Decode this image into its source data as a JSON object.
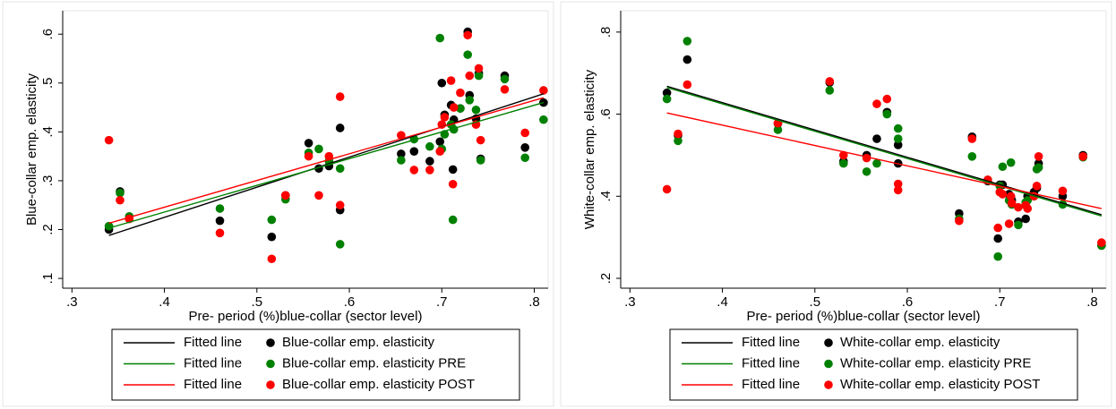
{
  "chart_data": [
    {
      "type": "scatter",
      "xlabel": "Pre- period (%)blue-collar (sector level)",
      "ylabel": "Blue-collar emp. elasticity",
      "xlim": [
        0.29,
        0.815
      ],
      "ylim": [
        0.08,
        0.648
      ],
      "xticks": [
        {
          "value": 0.3,
          "label": ".3"
        },
        {
          "value": 0.4,
          "label": ".4"
        },
        {
          "value": 0.5,
          "label": ".5"
        },
        {
          "value": 0.6,
          "label": ".6"
        },
        {
          "value": 0.7,
          "label": ".7"
        },
        {
          "value": 0.8,
          "label": ".8"
        }
      ],
      "yticks": [
        {
          "value": 0.1,
          "label": ".1"
        },
        {
          "value": 0.2,
          "label": ".2"
        },
        {
          "value": 0.3,
          "label": ".3"
        },
        {
          "value": 0.4,
          "label": ".4"
        },
        {
          "value": 0.5,
          "label": ".5"
        },
        {
          "value": 0.6,
          "label": ".6"
        }
      ],
      "x": [
        0.34,
        0.352,
        0.362,
        0.46,
        0.516,
        0.531,
        0.556,
        0.567,
        0.578,
        0.59,
        0.59,
        0.656,
        0.67,
        0.687,
        0.698,
        0.7,
        0.703,
        0.71,
        0.712,
        0.713,
        0.72,
        0.728,
        0.73,
        0.737,
        0.74,
        0.742,
        0.768,
        0.79,
        0.81
      ],
      "series": [
        {
          "name": "Blue-collar emp. elasticity",
          "color": "#000000",
          "values": [
            0.2,
            0.278,
            0.222,
            0.218,
            0.185,
            0.27,
            0.377,
            0.325,
            0.33,
            0.408,
            0.24,
            0.355,
            0.36,
            0.34,
            0.38,
            0.5,
            0.435,
            0.455,
            0.323,
            0.425,
            0.448,
            0.605,
            0.475,
            0.427,
            0.52,
            0.345,
            0.515,
            0.368,
            0.46
          ]
        },
        {
          "name": "Blue-collar emp. elasticity PRE",
          "color": "#008000",
          "values": [
            0.207,
            0.275,
            0.227,
            0.243,
            0.22,
            0.262,
            0.357,
            0.365,
            0.34,
            0.325,
            0.17,
            0.342,
            0.385,
            0.37,
            0.592,
            0.365,
            0.395,
            0.415,
            0.22,
            0.405,
            0.448,
            0.558,
            0.465,
            0.445,
            0.515,
            0.342,
            0.508,
            0.347,
            0.425
          ]
        },
        {
          "name": "Blue-collar emp. elasticity POST",
          "color": "#ff0000",
          "values": [
            0.383,
            0.26,
            0.222,
            0.193,
            0.14,
            0.27,
            0.35,
            0.27,
            0.35,
            0.472,
            0.25,
            0.393,
            0.322,
            0.322,
            0.36,
            0.415,
            0.43,
            0.505,
            0.293,
            0.45,
            0.48,
            0.598,
            0.515,
            0.415,
            0.53,
            0.383,
            0.487,
            0.398,
            0.485
          ]
        }
      ],
      "fits": [
        {
          "name": "Fitted line",
          "color": "#000000",
          "x": [
            0.34,
            0.81
          ],
          "values": [
            0.188,
            0.478
          ]
        },
        {
          "name": "Fitted line",
          "color": "#008000",
          "x": [
            0.34,
            0.81
          ],
          "values": [
            0.203,
            0.46
          ]
        },
        {
          "name": "Fitted line",
          "color": "#ff0000",
          "x": [
            0.34,
            0.81
          ],
          "values": [
            0.213,
            0.47
          ]
        }
      ]
    },
    {
      "type": "scatter",
      "xlabel": "Pre- period (%)blue-collar (sector level)",
      "ylabel": "White-collar emp. elasticity",
      "xlim": [
        0.29,
        0.815
      ],
      "ylim": [
        0.176,
        0.852
      ],
      "xticks": [
        {
          "value": 0.3,
          "label": ".3"
        },
        {
          "value": 0.4,
          "label": ".4"
        },
        {
          "value": 0.5,
          "label": ".5"
        },
        {
          "value": 0.6,
          "label": ".6"
        },
        {
          "value": 0.7,
          "label": ".7"
        },
        {
          "value": 0.8,
          "label": ".8"
        }
      ],
      "yticks": [
        {
          "value": 0.2,
          "label": ".2"
        },
        {
          "value": 0.4,
          "label": ".4"
        },
        {
          "value": 0.6,
          "label": ".6"
        },
        {
          "value": 0.8,
          "label": ".8"
        }
      ],
      "x": [
        0.34,
        0.352,
        0.362,
        0.46,
        0.516,
        0.531,
        0.556,
        0.567,
        0.578,
        0.59,
        0.59,
        0.656,
        0.67,
        0.687,
        0.698,
        0.7,
        0.703,
        0.71,
        0.712,
        0.713,
        0.72,
        0.728,
        0.73,
        0.737,
        0.74,
        0.742,
        0.768,
        0.79,
        0.81
      ],
      "series": [
        {
          "name": "White-collar emp. elasticity",
          "color": "#000000",
          "values": [
            0.652,
            0.548,
            0.733,
            0.577,
            0.677,
            0.485,
            0.5,
            0.54,
            0.605,
            0.525,
            0.48,
            0.358,
            0.545,
            0.437,
            0.297,
            0.428,
            0.428,
            0.405,
            0.398,
            0.39,
            0.338,
            0.345,
            0.4,
            0.41,
            0.42,
            0.48,
            0.4,
            0.5,
            0.28
          ]
        },
        {
          "name": "White-collar emp. elasticity PRE",
          "color": "#008000",
          "values": [
            0.637,
            0.535,
            0.778,
            0.562,
            0.658,
            0.48,
            0.46,
            0.48,
            0.6,
            0.565,
            0.54,
            0.345,
            0.497,
            0.44,
            0.253,
            0.425,
            0.472,
            0.39,
            0.482,
            0.38,
            0.33,
            0.385,
            0.39,
            0.4,
            0.466,
            0.47,
            0.38,
            0.495,
            0.28
          ]
        },
        {
          "name": "White-collar emp. elasticity POST",
          "color": "#ff0000",
          "values": [
            0.417,
            0.552,
            0.672,
            0.578,
            0.68,
            0.5,
            0.493,
            0.625,
            0.637,
            0.43,
            0.415,
            0.34,
            0.54,
            0.44,
            0.323,
            0.41,
            0.405,
            0.333,
            0.4,
            0.383,
            0.373,
            0.378,
            0.37,
            0.4,
            0.425,
            0.497,
            0.413,
            0.497,
            0.287
          ]
        }
      ],
      "fits": [
        {
          "name": "Fitted line",
          "color": "#000000",
          "x": [
            0.34,
            0.81
          ],
          "values": [
            0.668,
            0.355
          ]
        },
        {
          "name": "Fitted line",
          "color": "#008000",
          "x": [
            0.34,
            0.81
          ],
          "values": [
            0.665,
            0.352
          ]
        },
        {
          "name": "Fitted line",
          "color": "#ff0000",
          "x": [
            0.34,
            0.81
          ],
          "values": [
            0.603,
            0.37
          ]
        }
      ]
    }
  ]
}
